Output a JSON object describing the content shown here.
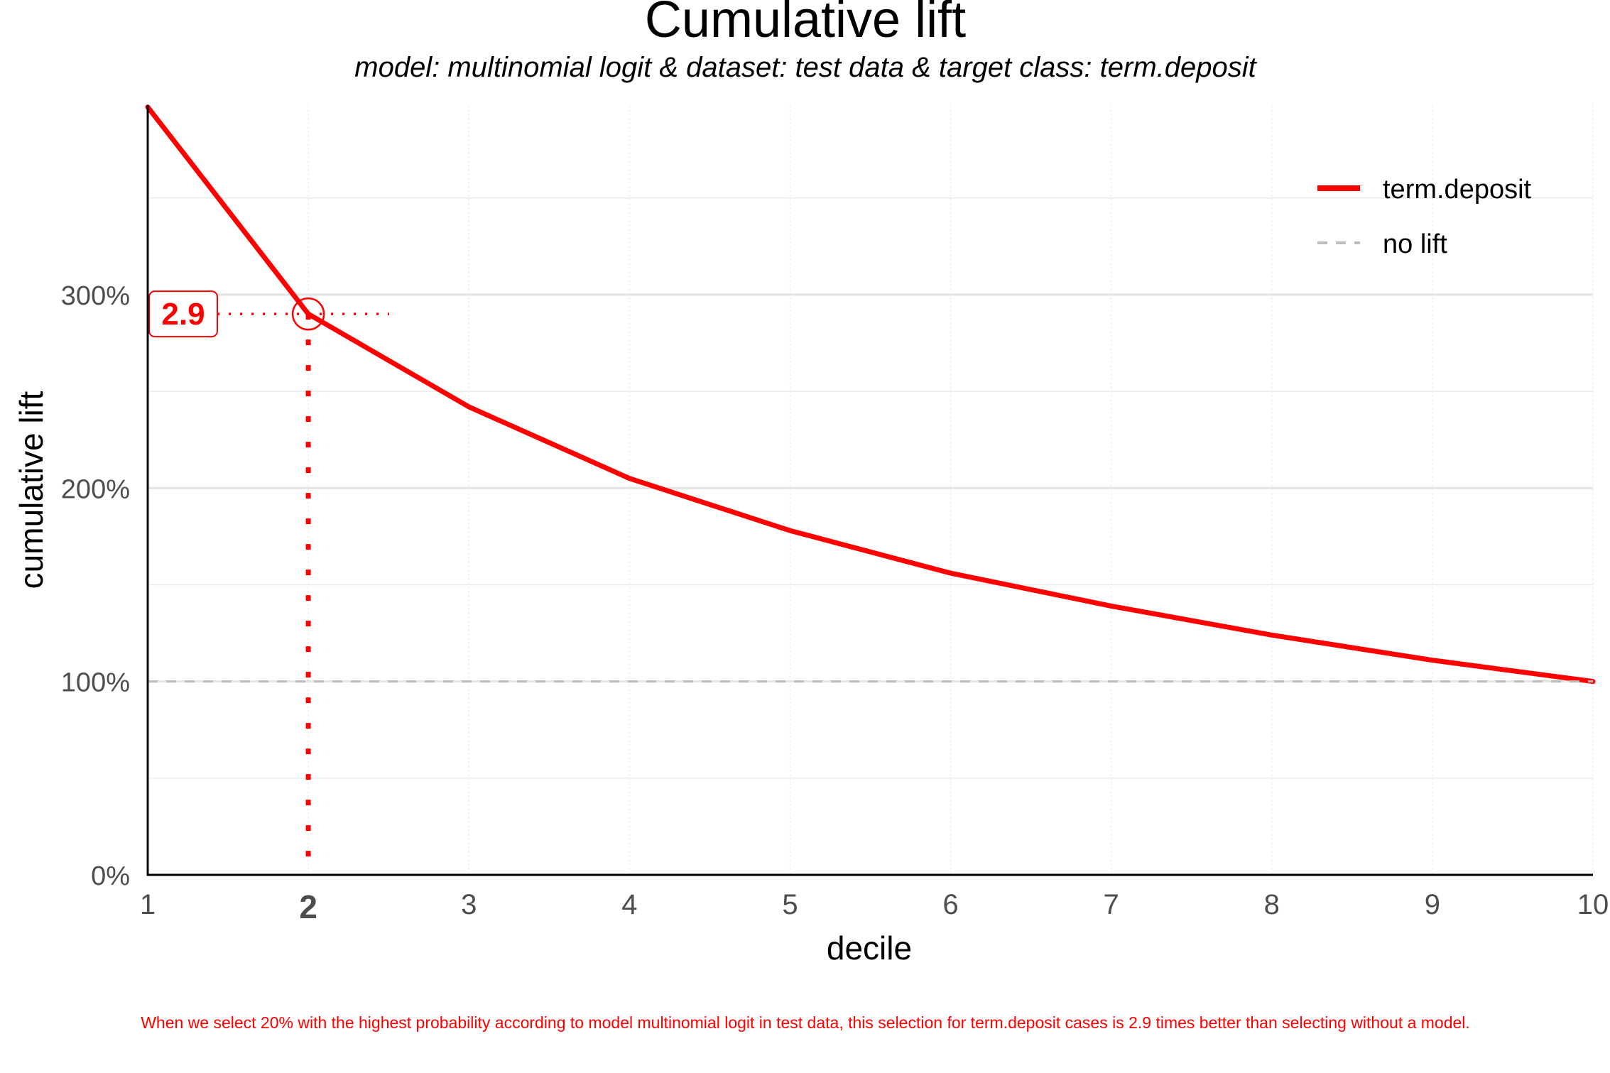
{
  "chart_data": {
    "type": "line",
    "title": "Cumulative lift",
    "subtitle": "model: multinomial logit  &  dataset: test data  &  target class: term.deposit",
    "xlabel": "decile",
    "ylabel": "cumulative lift",
    "x": [
      1,
      2,
      3,
      4,
      5,
      6,
      7,
      8,
      9,
      10
    ],
    "x_tick_labels": [
      "1",
      "2",
      "3",
      "4",
      "5",
      "6",
      "7",
      "8",
      "9",
      "10"
    ],
    "y_tick_labels": [
      "0%",
      "100%",
      "200%",
      "300%"
    ],
    "y_ticks": [
      0,
      1,
      2,
      3
    ],
    "xlim": [
      1,
      10
    ],
    "ylim": [
      0,
      3.98
    ],
    "grid": true,
    "legend_position": "top-right",
    "series": [
      {
        "name": "term.deposit",
        "color": "#ff0000",
        "style": "solid",
        "values": [
          3.97,
          2.9,
          2.42,
          2.05,
          1.78,
          1.56,
          1.39,
          1.24,
          1.11,
          1.0
        ]
      },
      {
        "name": "no lift",
        "color": "#bdbdbd",
        "style": "dashed",
        "values": [
          1,
          1,
          1,
          1,
          1,
          1,
          1,
          1,
          1,
          1
        ]
      }
    ],
    "highlight": {
      "decile": 2,
      "value": 2.9,
      "label": "2.9",
      "color": "#ff0000"
    },
    "caption": "When we select 20% with the highest probability according to model multinomial logit in test data, this selection for term.deposit cases is 2.9 times better than selecting without a model."
  }
}
